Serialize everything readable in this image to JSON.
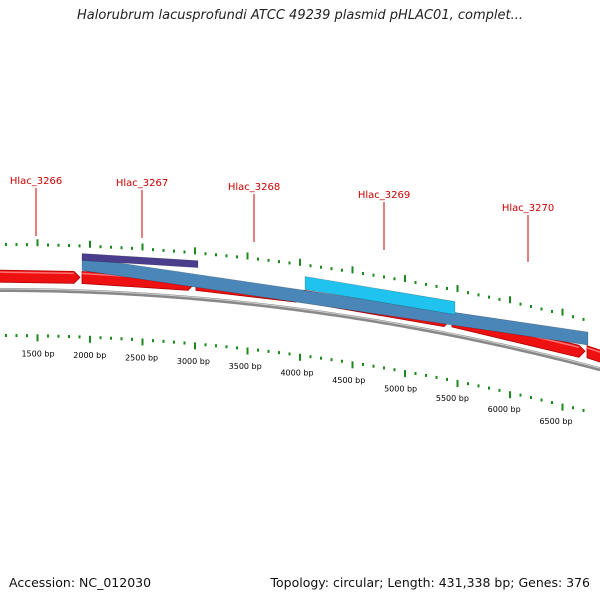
{
  "title": "Halorubrum lacusprofundi ATCC 49239 plasmid pHLAC01, complet...",
  "footer": {
    "accession": "Accession: NC_012030",
    "topology": "Topology: circular; Length: 431,338 bp; Genes: 376"
  },
  "gene_labels": [
    "Hlac_3266",
    "Hlac_3267",
    "Hlac_3268",
    "Hlac_3269",
    "Hlac_3270"
  ],
  "scale_labels": [
    "1500 bp",
    "2000 bp",
    "2500 bp",
    "3000 bp",
    "3500 bp",
    "4000 bp",
    "4500 bp",
    "5000 bp",
    "5500 bp",
    "6000 bp",
    "6500 bp"
  ],
  "colors": {
    "gene": "#ee1111",
    "gene_dark": "#b00000",
    "backbone": "#888888",
    "ticks": "#1a8a1a",
    "label": "#cc0000",
    "hit_dark": "#4a3d8c",
    "hit_mid": "#4a86b8",
    "hit_light": "#1fc3ee"
  }
}
